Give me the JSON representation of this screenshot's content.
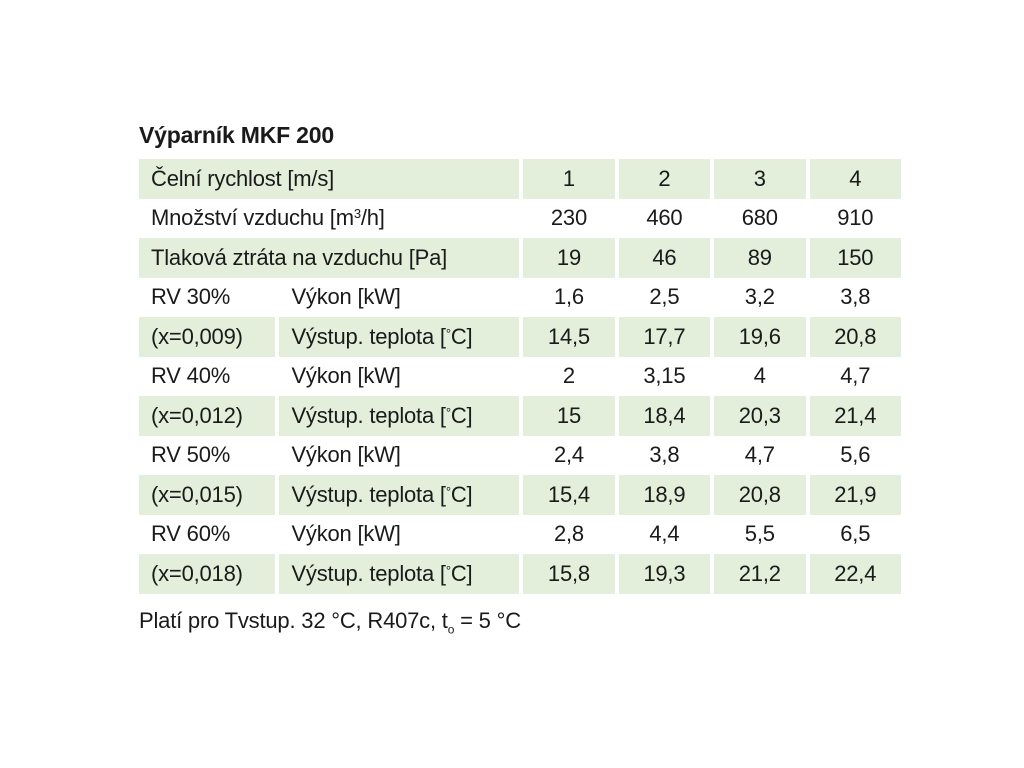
{
  "title": "Výparník MKF 200",
  "colors": {
    "band": "#e3eedb",
    "text": "#1a1a1a"
  },
  "rows": {
    "r1": {
      "label": "Čelní rychlost [m/s]",
      "values": [
        "1",
        "2",
        "3",
        "4"
      ]
    },
    "r2": {
      "label_pre": "Množství vzduchu [m",
      "label_sup": "3",
      "label_post": "/h]",
      "values": [
        "230",
        "460",
        "680",
        "910"
      ]
    },
    "r3": {
      "label": "Tlaková ztráta na vzduchu [Pa]",
      "values": [
        "19",
        "46",
        "89",
        "150"
      ]
    },
    "r4": {
      "group": "RV 30%",
      "param": "Výkon [kW]",
      "values": [
        "1,6",
        "2,5",
        "3,2",
        "3,8"
      ]
    },
    "r5": {
      "group": "(x=0,009)",
      "param_pre": "Výstup. teplota [",
      "param_deg": "°",
      "param_post": "C]",
      "values": [
        "14,5",
        "17,7",
        "19,6",
        "20,8"
      ]
    },
    "r6": {
      "group": "RV 40%",
      "param": "Výkon [kW]",
      "values": [
        "2",
        "3,15",
        "4",
        "4,7"
      ]
    },
    "r7": {
      "group": "(x=0,012)",
      "param_pre": "Výstup. teplota [",
      "param_deg": "°",
      "param_post": "C]",
      "values": [
        "15",
        "18,4",
        "20,3",
        "21,4"
      ]
    },
    "r8": {
      "group": "RV 50%",
      "param": "Výkon [kW]",
      "values": [
        "2,4",
        "3,8",
        "4,7",
        "5,6"
      ]
    },
    "r9": {
      "group": "(x=0,015)",
      "param_pre": "Výstup. teplota [",
      "param_deg": "°",
      "param_post": "C]",
      "values": [
        "15,4",
        "18,9",
        "20,8",
        "21,9"
      ]
    },
    "r10": {
      "group": "RV 60%",
      "param": "Výkon [kW]",
      "values": [
        "2,8",
        "4,4",
        "5,5",
        "6,5"
      ]
    },
    "r11": {
      "group": "(x=0,018)",
      "param_pre": "Výstup. teplota [",
      "param_deg": "°",
      "param_post": "C]",
      "values": [
        "15,8",
        "19,3",
        "21,2",
        "22,4"
      ]
    }
  },
  "note": {
    "pre": "Platí pro Tvstup. 32 °C, R407c, t",
    "sub": "o",
    "post": " = 5 °C"
  }
}
